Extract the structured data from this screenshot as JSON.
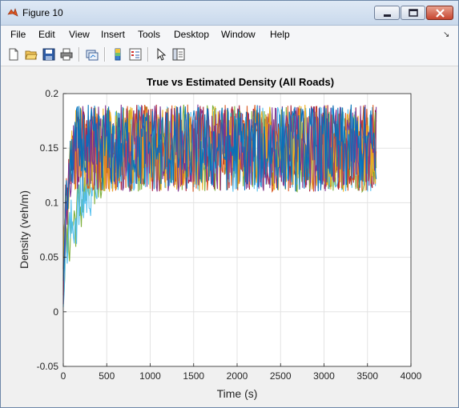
{
  "window": {
    "title": "Figure 10"
  },
  "menu": [
    "File",
    "Edit",
    "View",
    "Insert",
    "Tools",
    "Desktop",
    "Window",
    "Help"
  ],
  "toolbar": [
    "new-figure-icon",
    "open-file-icon",
    "save-icon",
    "print-icon",
    "link-plot-icon",
    "insert-colorbar-icon",
    "insert-legend-icon",
    "pointer-icon",
    "show-plot-tools-icon"
  ],
  "chart_data": {
    "type": "line",
    "title": "True vs Estimated Density (All Roads)",
    "xlabel": "Time (s)",
    "ylabel": "Density (veh/m)",
    "xlim": [
      0,
      4000
    ],
    "ylim": [
      -0.05,
      0.2
    ],
    "xticks": [
      "0",
      "500",
      "1000",
      "1500",
      "2000",
      "2500",
      "3000",
      "3500",
      "4000"
    ],
    "yticks": [
      "-0.05",
      "0",
      "0.05",
      "0.1",
      "0.15",
      "0.2"
    ],
    "grid": true,
    "colors": [
      "#0072bd",
      "#d95319",
      "#edb120",
      "#7e2f8e",
      "#77ac30",
      "#4dbeee",
      "#a2142f"
    ],
    "series_profile": {
      "time_range": [
        0,
        3600
      ],
      "start_value": 0.03,
      "steady_state_mean": 0.15,
      "steady_state_band": [
        0.11,
        0.19
      ],
      "ramp_end_time": 120,
      "slow_ramp_end_time": 450
    }
  }
}
